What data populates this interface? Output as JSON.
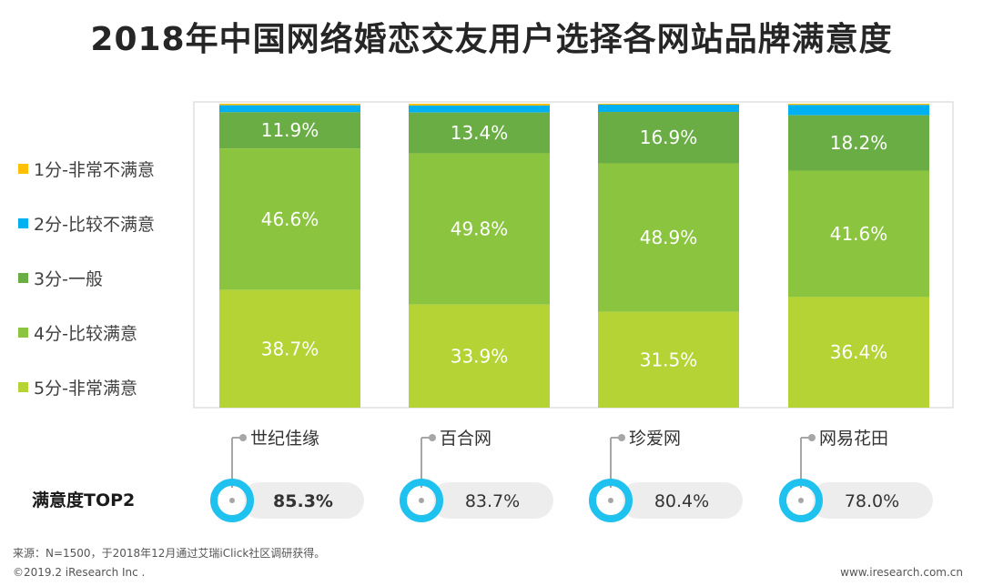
{
  "title": "2018年中国网络婚恋交友用户选择各网站品牌满意度",
  "chart_data": {
    "type": "stacked-bar-100",
    "title": "2018年中国网络婚恋交友用户选择各网站品牌满意度",
    "categories": [
      "世纪佳缘",
      "百合网",
      "珍爱网",
      "网易花田"
    ],
    "series": [
      {
        "name": "1分-非常不满意",
        "color": "#FFC000",
        "values": [
          0.5,
          0.6,
          0.3,
          0.4
        ]
      },
      {
        "name": "2分-比较不满意",
        "color": "#00B0F0",
        "values": [
          2.3,
          2.3,
          2.4,
          3.4
        ]
      },
      {
        "name": "3分-一般",
        "color": "#6AAD45",
        "values": [
          11.9,
          13.4,
          16.9,
          18.2
        ]
      },
      {
        "name": "4分-比较满意",
        "color": "#8BC53F",
        "values": [
          46.6,
          49.8,
          48.9,
          41.6
        ]
      },
      {
        "name": "5分-非常满意",
        "color": "#B5D334",
        "values": [
          38.7,
          33.9,
          31.5,
          36.4
        ]
      }
    ],
    "labels": [
      [
        "",
        "",
        "11.9%",
        "46.6%",
        "38.7%"
      ],
      [
        "",
        "",
        "13.4%",
        "49.8%",
        "33.9%"
      ],
      [
        "",
        "",
        "16.9%",
        "48.9%",
        "31.5%"
      ],
      [
        "",
        "",
        "18.2%",
        "41.6%",
        "36.4%"
      ]
    ],
    "ylim": [
      0,
      100
    ],
    "legend_position": "left",
    "top2": {
      "label": "满意度TOP2",
      "values": [
        "85.3%",
        "83.7%",
        "80.4%",
        "78.0%"
      ],
      "highlight_color": "#00B0F0"
    }
  },
  "footer": {
    "source": "来源：N=1500，于2018年12月通过艾瑞iClick社区调研获得。",
    "copyright": "©2019.2 iResearch Inc .",
    "website": "www.iresearch.com.cn"
  },
  "colors": {
    "ring": "#1FC1EE",
    "pill": "#EDEDED",
    "frame": "#D0D0D0",
    "connector": "#A6A6A6"
  }
}
